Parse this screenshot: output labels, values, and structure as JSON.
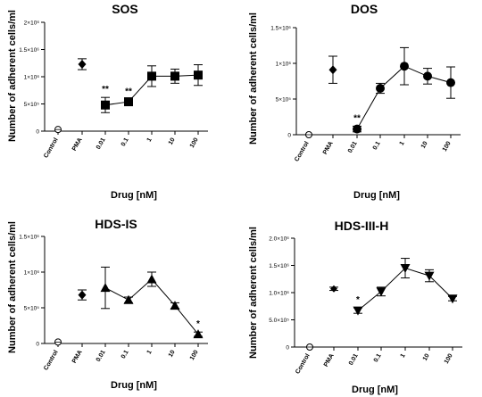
{
  "shared": {
    "ylabel": "Number of adherent cells/ml",
    "xlabel": "Drug [nM]",
    "categories": [
      "Control",
      "PMA",
      "0.01",
      "0.1",
      "1",
      "10",
      "100"
    ]
  },
  "chart_data": [
    {
      "type": "scatter",
      "title": "SOS",
      "marker": "square",
      "ylim": [
        0,
        2000000
      ],
      "yticks": [
        0,
        500000,
        1000000,
        1500000,
        2000000
      ],
      "ytick_labels": [
        "0",
        "5×10⁵",
        "1×10⁶",
        "1.5×10⁶",
        "2×10⁶"
      ],
      "control": 30000,
      "pma": {
        "mean": 1230000,
        "err": 100000
      },
      "series": {
        "values": [
          480000,
          540000,
          1010000,
          1010000,
          1030000
        ],
        "errors": [
          140000,
          40000,
          190000,
          130000,
          190000
        ]
      },
      "annotations": [
        "**",
        "**",
        "",
        "",
        ""
      ]
    },
    {
      "type": "scatter",
      "title": "DOS",
      "marker": "circle",
      "ylim": [
        0,
        1500000
      ],
      "yticks": [
        0,
        500000,
        1000000,
        1500000
      ],
      "ytick_labels": [
        "0",
        "5×10⁵",
        "1×10⁶",
        "1.5×10⁶"
      ],
      "control": 0,
      "pma": {
        "mean": 910000,
        "err": 190000
      },
      "series": {
        "values": [
          80000,
          650000,
          960000,
          820000,
          730000
        ],
        "errors": [
          40000,
          70000,
          260000,
          110000,
          220000
        ]
      },
      "annotations": [
        "**",
        "",
        "",
        "",
        ""
      ]
    },
    {
      "type": "scatter",
      "title": "HDS-IS",
      "marker": "triangle-up",
      "ylim": [
        0,
        1500000
      ],
      "yticks": [
        0,
        500000,
        1000000,
        1500000
      ],
      "ytick_labels": [
        "0",
        "5×10⁵",
        "1×10⁶",
        "1.5×10⁶"
      ],
      "control": 20000,
      "pma": {
        "mean": 680000,
        "err": 70000
      },
      "series": {
        "values": [
          780000,
          610000,
          900000,
          530000,
          130000
        ],
        "errors": [
          290000,
          40000,
          100000,
          40000,
          30000
        ]
      },
      "annotations": [
        "",
        "",
        "",
        "",
        "*"
      ]
    },
    {
      "type": "scatter",
      "title": "HDS-III-H",
      "marker": "triangle-down",
      "ylim": [
        0,
        2000000
      ],
      "yticks": [
        0,
        500000,
        1000000,
        1500000,
        2000000
      ],
      "ytick_labels": [
        "0",
        "5.0×10⁵",
        "1.0×10⁶",
        "1.5×10⁶",
        "2.0×10⁶"
      ],
      "control": 0,
      "pma": {
        "mean": 1070000,
        "err": 30000
      },
      "series": {
        "values": [
          670000,
          1020000,
          1450000,
          1310000,
          890000
        ],
        "errors": [
          50000,
          80000,
          180000,
          110000,
          40000
        ]
      },
      "annotations": [
        "*",
        "",
        "",
        "",
        ""
      ]
    }
  ]
}
